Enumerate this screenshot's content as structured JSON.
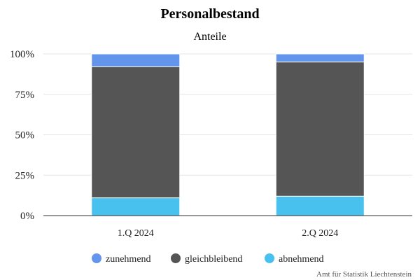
{
  "chart_data": {
    "type": "bar",
    "stacked": true,
    "percent": true,
    "title": "Personalbestand",
    "subtitle": "Anteile",
    "categories": [
      "1.Q 2024",
      "2.Q 2024"
    ],
    "series": [
      {
        "name": "zunehmend",
        "color": "#6495ED",
        "values": [
          8,
          5
        ]
      },
      {
        "name": "gleichbleibend",
        "color": "#555555",
        "values": [
          81,
          83
        ]
      },
      {
        "name": "abnehmend",
        "color": "#48C1EF",
        "values": [
          11,
          12
        ]
      }
    ],
    "ylim": [
      0,
      100
    ],
    "yticks": [
      "0%",
      "25%",
      "50%",
      "75%",
      "100%"
    ],
    "grid": true,
    "legend_position": "bottom",
    "credits": "Amt für Statistik Liechtenstein"
  }
}
